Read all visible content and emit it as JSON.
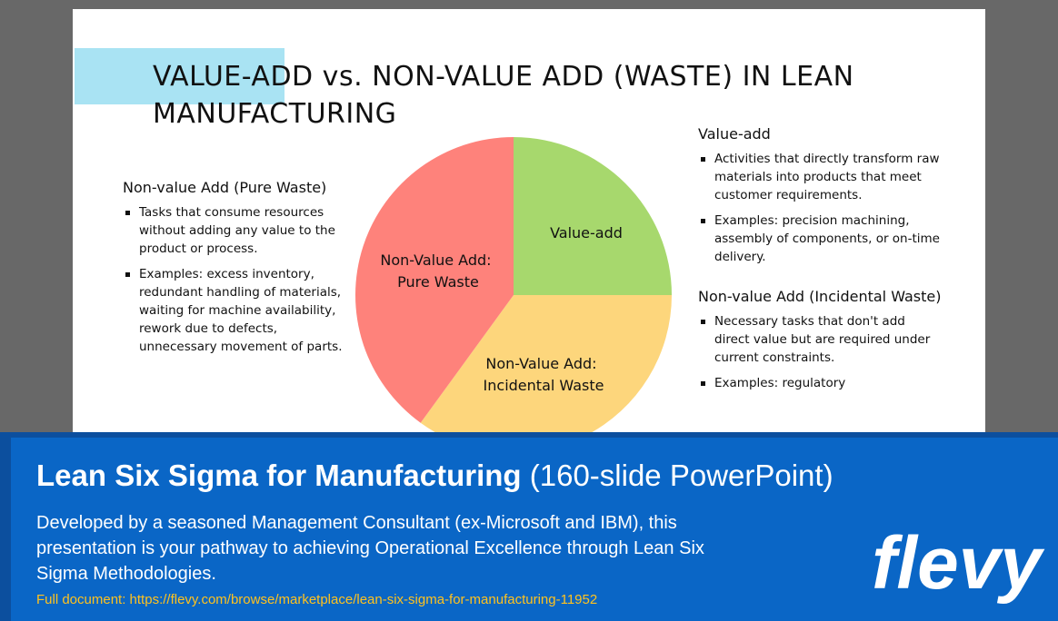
{
  "slide": {
    "title": "VALUE-ADD vs. NON-VALUE ADD (WASTE) IN LEAN MANUFACTURING",
    "left": {
      "heading": "Non-value Add (Pure Waste)",
      "bullets": [
        "Tasks that consume resources without adding any value to the product or process.",
        "Examples: excess inventory, redundant handling of materials, waiting for machine availability, rework due to defects, unnecessary movement of parts."
      ]
    },
    "right": {
      "sections": [
        {
          "heading": "Value-add",
          "bullets": [
            "Activities that directly transform raw materials into products that meet customer requirements.",
            "Examples: precision machining, assembly of components, or on-time delivery."
          ]
        },
        {
          "heading": "Non-value Add (Incidental Waste)",
          "bullets": [
            "Necessary tasks that don't add direct value but are required under current constraints.",
            "Examples: regulatory"
          ]
        }
      ]
    },
    "pie": {
      "slices": [
        {
          "label_line1": "Value-add",
          "label_line2": "",
          "share": 0.25,
          "color": "#a7d86d"
        },
        {
          "label_line1": "Non-Value Add:",
          "label_line2": "Incidental Waste",
          "share": 0.35,
          "color": "#fdd67c"
        },
        {
          "label_line1": "Non-Value Add:",
          "label_line2": "Pure Waste",
          "share": 0.4,
          "color": "#fe827b"
        }
      ]
    },
    "colors": {
      "accent": "#a9e3f3"
    }
  },
  "banner": {
    "title_strong": "Lean Six Sigma for Manufacturing",
    "title_light": "(160-slide PowerPoint)",
    "description": "Developed by a seasoned Management Consultant (ex-Microsoft and IBM), this presentation is your pathway to achieving Operational Excellence through Lean Six Sigma Methodologies.",
    "link_text": "Full document: https://flevy.com/browse/marketplace/lean-six-sigma-for-manufacturing-11952",
    "logo": "flevy",
    "colors": {
      "background": "#0a66c6",
      "link": "#ffc21e"
    }
  }
}
